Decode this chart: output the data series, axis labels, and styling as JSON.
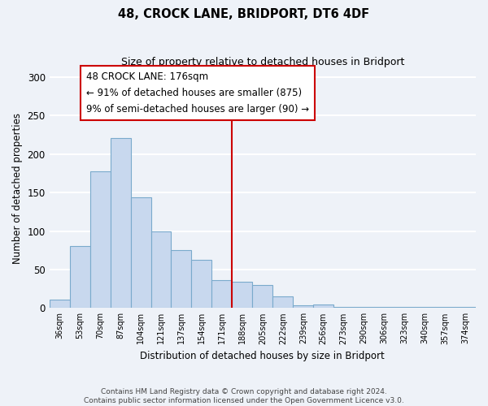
{
  "title": "48, CROCK LANE, BRIDPORT, DT6 4DF",
  "subtitle": "Size of property relative to detached houses in Bridport",
  "xlabel": "Distribution of detached houses by size in Bridport",
  "ylabel": "Number of detached properties",
  "bar_labels": [
    "36sqm",
    "53sqm",
    "70sqm",
    "87sqm",
    "104sqm",
    "121sqm",
    "137sqm",
    "154sqm",
    "171sqm",
    "188sqm",
    "205sqm",
    "222sqm",
    "239sqm",
    "256sqm",
    "273sqm",
    "290sqm",
    "306sqm",
    "323sqm",
    "340sqm",
    "357sqm",
    "374sqm"
  ],
  "bar_values": [
    11,
    81,
    178,
    221,
    144,
    100,
    75,
    63,
    36,
    34,
    30,
    15,
    4,
    5,
    1,
    1,
    1,
    1,
    1,
    1,
    1
  ],
  "bar_color": "#c8d8ee",
  "bar_edge_color": "#7aaacc",
  "vline_x_index": 8.5,
  "vline_color": "#cc0000",
  "annotation_line1": "48 CROCK LANE: 176sqm",
  "annotation_line2": "← 91% of detached houses are smaller (875)",
  "annotation_line3": "9% of semi-detached houses are larger (90) →",
  "annotation_box_color": "#ffffff",
  "annotation_box_edge_color": "#cc0000",
  "ylim": [
    0,
    310
  ],
  "yticks": [
    0,
    50,
    100,
    150,
    200,
    250,
    300
  ],
  "footer_text": "Contains HM Land Registry data © Crown copyright and database right 2024.\nContains public sector information licensed under the Open Government Licence v3.0.",
  "bg_color": "#eef2f8",
  "grid_color": "#ffffff"
}
